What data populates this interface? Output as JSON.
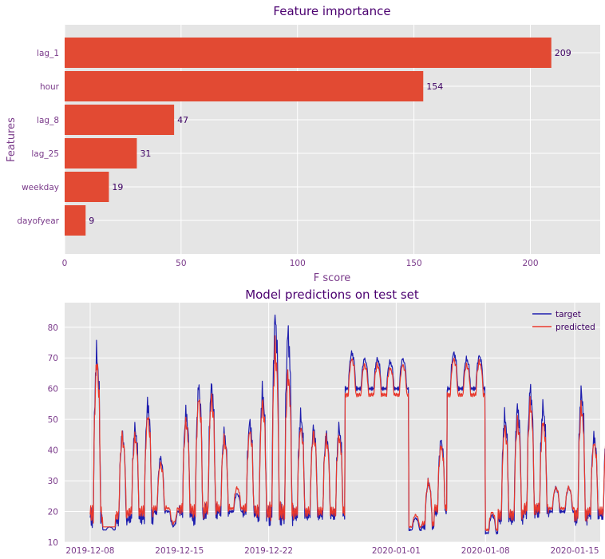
{
  "colors": {
    "panel_bg": "#e5e5e5",
    "grid": "#ffffff",
    "bar": "#e24a33",
    "target": "#1f1fae",
    "predicted": "#e8382c",
    "text": "#7a3a8a"
  },
  "chart_data": [
    {
      "type": "bar",
      "orientation": "horizontal",
      "title": "Feature importance",
      "xlabel": "F score",
      "ylabel": "Features",
      "categories": [
        "lag_1",
        "hour",
        "lag_8",
        "lag_25",
        "weekday",
        "dayofyear"
      ],
      "values": [
        209,
        154,
        47,
        31,
        19,
        9
      ],
      "value_labels": [
        "209",
        "154",
        "47",
        "31",
        "19",
        "9"
      ],
      "xlim": [
        0,
        230
      ],
      "xticks": [
        0,
        50,
        100,
        150,
        200
      ],
      "xtick_labels": [
        "0",
        "50",
        "100",
        "150",
        "200"
      ],
      "grid": true
    },
    {
      "type": "line",
      "title": "Model predictions on test set",
      "xlabel": "",
      "ylabel": "",
      "x_start": "2019-12-08",
      "x_end": "2020-01-15",
      "xticks": [
        "2019-12-08",
        "2019-12-15",
        "2019-12-22",
        "2020-01-01",
        "2020-01-08",
        "2020-01-15"
      ],
      "xtick_labels": [
        "2019-12-08",
        "2019-12-15",
        "2019-12-22",
        "2020-01-01",
        "2020-01-08",
        "2020-01-15"
      ],
      "ylim": [
        10,
        88
      ],
      "yticks": [
        10,
        20,
        30,
        40,
        50,
        60,
        70,
        80
      ],
      "ytick_labels": [
        "10",
        "20",
        "30",
        "40",
        "50",
        "60",
        "70",
        "80"
      ],
      "legend": "top-right",
      "grid": true,
      "series": [
        {
          "name": "target",
          "daily_peaks": [
            73,
            15,
            46,
            48,
            56,
            38,
            15,
            53,
            62,
            62,
            46,
            26,
            50,
            60,
            85,
            80,
            52,
            48,
            46,
            48,
            72,
            70,
            70,
            69,
            70,
            18,
            30,
            44,
            72,
            70,
            71,
            19,
            52,
            55,
            61,
            55,
            28,
            28,
            60,
            45,
            48,
            62,
            58,
            48
          ],
          "daily_troughs": [
            18,
            14,
            17,
            18,
            18,
            20,
            20,
            20,
            18,
            20,
            20,
            20,
            20,
            19,
            19,
            19,
            19,
            19,
            19,
            19,
            60,
            60,
            60,
            60,
            60,
            14,
            15,
            20,
            60,
            60,
            60,
            13,
            18,
            18,
            20,
            20,
            20,
            20,
            18,
            19,
            19,
            19,
            20,
            20
          ]
        },
        {
          "name": "predicted",
          "daily_peaks": [
            70,
            15,
            45,
            45,
            52,
            36,
            16,
            50,
            58,
            58,
            44,
            28,
            47,
            56,
            74,
            66,
            48,
            46,
            44,
            45,
            70,
            68,
            68,
            67,
            68,
            19,
            30,
            42,
            70,
            68,
            69,
            20,
            48,
            50,
            56,
            50,
            28,
            28,
            55,
            43,
            46,
            56,
            54,
            46
          ],
          "daily_troughs": [
            19,
            15,
            19,
            20,
            20,
            21,
            21,
            21,
            20,
            21,
            21,
            21,
            21,
            20,
            20,
            20,
            20,
            20,
            20,
            20,
            58,
            58,
            58,
            58,
            58,
            15,
            16,
            21,
            58,
            58,
            58,
            14,
            19,
            19,
            21,
            21,
            21,
            21,
            19,
            20,
            20,
            20,
            21,
            21
          ]
        }
      ]
    }
  ]
}
